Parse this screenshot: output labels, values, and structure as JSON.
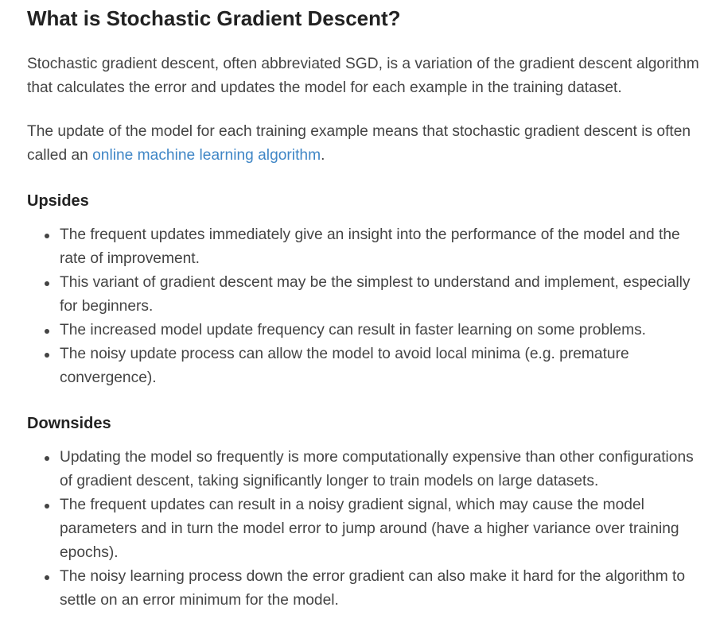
{
  "title": "What is Stochastic Gradient Descent?",
  "intro_paragraph": "Stochastic gradient descent, often abbreviated SGD, is a variation of the gradient descent algorithm that calculates the error and updates the model for each example in the training dataset.",
  "second_paragraph": {
    "text_before_link": "The update of the model for each training example means that stochastic gradient descent is often called an ",
    "link_text": "online machine learning algorithm",
    "text_after_link": "."
  },
  "upsides": {
    "heading": "Upsides",
    "items": [
      "The frequent updates immediately give an insight into the performance of the model and the rate of improvement.",
      "This variant of gradient descent may be the simplest to understand and implement, especially for beginners.",
      "The increased model update frequency can result in faster learning on some problems.",
      "The noisy update process can allow the model to avoid local minima (e.g. premature convergence)."
    ]
  },
  "downsides": {
    "heading": "Downsides",
    "items": [
      "Updating the model so frequently is more computationally expensive than other configurations of gradient descent, taking significantly longer to train models on large datasets.",
      "The frequent updates can result in a noisy gradient signal, which may cause the model parameters and in turn the model error to jump around (have a higher variance over training epochs).",
      "The noisy learning process down the error gradient can also make it hard for the algorithm to settle on an error minimum for the model."
    ]
  },
  "colors": {
    "text": "#444444",
    "heading": "#222222",
    "link": "#3f86c6"
  }
}
